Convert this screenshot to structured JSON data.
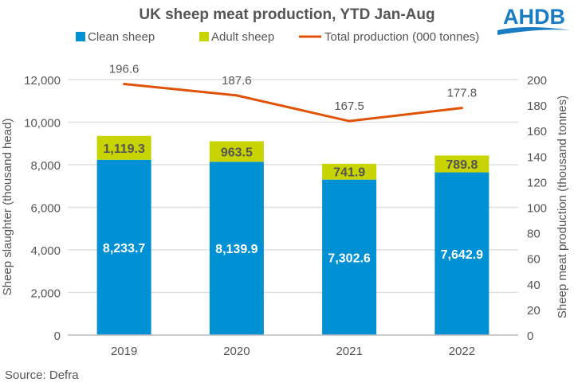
{
  "logo": {
    "text": "AHDB",
    "color": "#1a7dc4"
  },
  "source": "Source: Defra",
  "chart_data": {
    "type": "bar",
    "title": "UK sheep meat production, YTD Jan-Aug",
    "categories": [
      "2019",
      "2020",
      "2021",
      "2022"
    ],
    "series": [
      {
        "name": "Clean sheep",
        "type": "stacked-bar",
        "axis": "left",
        "color": "#0090D4",
        "values": [
          8233.7,
          8139.9,
          7302.6,
          7642.9
        ],
        "labels": [
          "8,233.7",
          "8,139.9",
          "7,302.6",
          "7,642.9"
        ]
      },
      {
        "name": "Adult sheep",
        "type": "stacked-bar",
        "axis": "left",
        "color": "#C8D400",
        "values": [
          1119.3,
          963.5,
          741.9,
          789.8
        ],
        "labels": [
          "1,119.3",
          "963.5",
          "741.9",
          "789.8"
        ]
      },
      {
        "name": "Total production (000 tonnes)",
        "type": "line",
        "axis": "right",
        "color": "#E05206",
        "values": [
          196.6,
          187.6,
          167.5,
          177.8
        ],
        "labels": [
          "196.6",
          "187.6",
          "167.5",
          "177.8"
        ]
      }
    ],
    "ylabel": "Sheep slaughter (thousand head)",
    "y2label": "Sheep meat production (thousand tonnes)",
    "ylim": [
      0,
      12000
    ],
    "y2lim": [
      0,
      200
    ],
    "yticks": [
      "0",
      "2,000",
      "4,000",
      "6,000",
      "8,000",
      "10,000",
      "12,000"
    ],
    "y2ticks": [
      "0",
      "20",
      "40",
      "60",
      "80",
      "100",
      "120",
      "140",
      "160",
      "180",
      "200"
    ],
    "grid": true,
    "legend": "top"
  }
}
